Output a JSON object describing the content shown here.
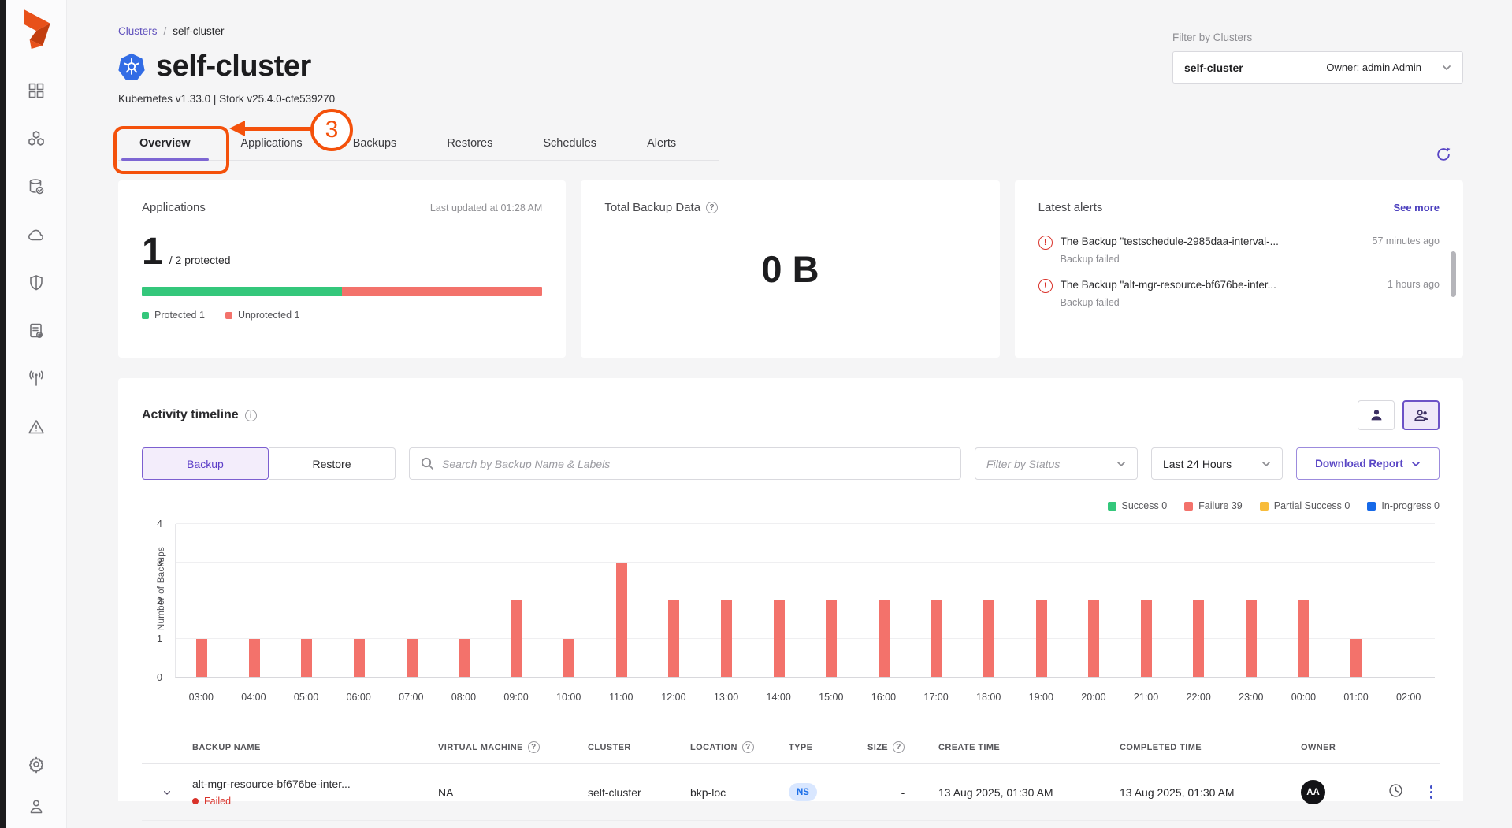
{
  "colors": {
    "accent_purple": "#5946C5",
    "annotation_orange": "#F4510B",
    "failure_red": "#F3726B",
    "success_green": "#34C77B",
    "partial_yellow": "#F8BC3B",
    "inprogress_blue": "#1669E8",
    "ns_badge_bg": "#D9E7FF",
    "ns_badge_text": "#1C6FE8"
  },
  "sidebar": {
    "items": [
      {
        "icon": "dashboard-grid-icon"
      },
      {
        "icon": "clusters-cubes-icon"
      },
      {
        "icon": "backup-restore-db-icon"
      },
      {
        "icon": "cloud-icon"
      },
      {
        "icon": "shield-icon"
      },
      {
        "icon": "rules-doc-gear-icon"
      },
      {
        "icon": "antenna-icon"
      },
      {
        "icon": "alerts-triangle-icon"
      }
    ],
    "bottom_items": [
      {
        "icon": "settings-gear-icon"
      },
      {
        "icon": "user-icon"
      }
    ]
  },
  "header": {
    "breadcrumb": {
      "parent": "Clusters",
      "separator": "/",
      "current": "self-cluster"
    },
    "title": "self-cluster",
    "subtitle": "Kubernetes v1.33.0 | Stork v25.4.0-cfe539270",
    "filter_label": "Filter by Clusters",
    "cluster_select": {
      "value": "self-cluster",
      "owner": "Owner: admin Admin"
    }
  },
  "tabs": [
    {
      "label": "Overview",
      "active": true
    },
    {
      "label": "Applications",
      "active": false
    },
    {
      "label": "Backups",
      "active": false
    },
    {
      "label": "Restores",
      "active": false
    },
    {
      "label": "Schedules",
      "active": false
    },
    {
      "label": "Alerts",
      "active": false
    }
  ],
  "annotation": {
    "number": "3"
  },
  "cards": {
    "applications": {
      "title": "Applications",
      "last_updated": "Last updated at 01:28 AM",
      "count": "1",
      "count_suffix": "/ 2 protected",
      "progress": [
        {
          "label": "Protected 1",
          "pct": 50,
          "color": "#34C77B"
        },
        {
          "label": "Unprotected 1",
          "pct": 50,
          "color": "#F3726B"
        }
      ]
    },
    "total_backup": {
      "title": "Total Backup Data",
      "value": "0 B"
    },
    "alerts": {
      "title": "Latest alerts",
      "see_more": "See more",
      "items": [
        {
          "message": "The Backup \"testschedule-2985daa-interval-...",
          "detail": "Backup failed",
          "time": "57 minutes ago"
        },
        {
          "message": "The Backup \"alt-mgr-resource-bf676be-inter...",
          "detail": "Backup failed",
          "time": "1 hours ago"
        }
      ]
    }
  },
  "activity": {
    "title": "Activity timeline",
    "toggle": [
      {
        "label": "Backup",
        "active": true
      },
      {
        "label": "Restore",
        "active": false
      }
    ],
    "search_placeholder": "Search by Backup Name & Labels",
    "status_filter_placeholder": "Filter by Status",
    "time_range": "Last 24 Hours",
    "download_label": "Download Report",
    "legend": [
      {
        "label": "Success 0",
        "color": "#34C77B"
      },
      {
        "label": "Failure 39",
        "color": "#F3726B"
      },
      {
        "label": "Partial Success 0",
        "color": "#F8BC3B"
      },
      {
        "label": "In-progress 0",
        "color": "#1669E8"
      }
    ]
  },
  "chart_data": {
    "type": "bar",
    "title": "Activity timeline — Backups (Last 24 Hours)",
    "categories": [
      "03:00",
      "04:00",
      "05:00",
      "06:00",
      "07:00",
      "08:00",
      "09:00",
      "10:00",
      "11:00",
      "12:00",
      "13:00",
      "14:00",
      "15:00",
      "16:00",
      "17:00",
      "18:00",
      "19:00",
      "20:00",
      "21:00",
      "22:00",
      "23:00",
      "00:00",
      "01:00",
      "02:00"
    ],
    "series": [
      {
        "name": "Failure",
        "color": "#F3726B",
        "values": [
          1,
          1,
          1,
          1,
          1,
          1,
          2,
          1,
          3,
          2,
          2,
          2,
          2,
          2,
          2,
          2,
          2,
          2,
          2,
          2,
          2,
          2,
          1,
          0
        ]
      }
    ],
    "xlabel": "",
    "ylabel": "Number of Backups",
    "ylim": [
      0,
      4
    ],
    "yticks": [
      0,
      1,
      2,
      3,
      4
    ],
    "grid": true,
    "legend_position": "top-right"
  },
  "table": {
    "columns": [
      {
        "label": "BACKUP NAME",
        "help": false
      },
      {
        "label": "VIRTUAL MACHINE",
        "help": true
      },
      {
        "label": "CLUSTER",
        "help": false
      },
      {
        "label": "LOCATION",
        "help": true
      },
      {
        "label": "TYPE",
        "help": false
      },
      {
        "label": "SIZE",
        "help": true
      },
      {
        "label": "CREATE TIME",
        "help": false
      },
      {
        "label": "COMPLETED TIME",
        "help": false
      },
      {
        "label": "OWNER",
        "help": false
      }
    ],
    "rows": [
      {
        "backup_name": "alt-mgr-resource-bf676be-inter...",
        "status": "Failed",
        "status_color": "#D9322A",
        "virtual_machine": "NA",
        "cluster": "self-cluster",
        "location": "bkp-loc",
        "type_badge": "NS",
        "size": "-",
        "create_time": "13 Aug 2025, 01:30 AM",
        "completed_time": "13 Aug 2025, 01:30 AM",
        "owner_initials": "AA"
      }
    ]
  }
}
